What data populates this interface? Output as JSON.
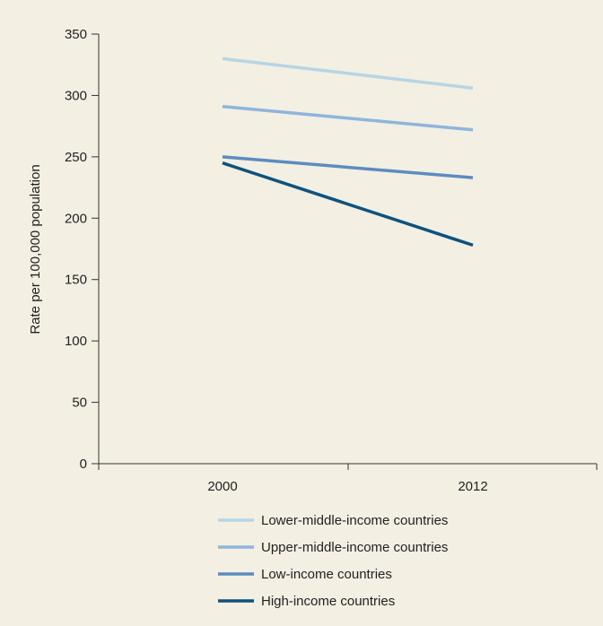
{
  "chart_data": {
    "type": "line",
    "title": "",
    "xlabel": "",
    "ylabel": "Rate per 100,000 population",
    "categories": [
      "2000",
      "2012"
    ],
    "ylim": [
      0,
      350
    ],
    "yticks": [
      0,
      50,
      100,
      150,
      200,
      250,
      300,
      350
    ],
    "grid": false,
    "legend_position": "bottom",
    "series": [
      {
        "name": "Lower-middle-income countries",
        "values": [
          330,
          306
        ],
        "color": "#b6d5e6"
      },
      {
        "name": "Upper-middle-income countries",
        "values": [
          291,
          272
        ],
        "color": "#8fb5dc"
      },
      {
        "name": "Low-income countries",
        "values": [
          250,
          233
        ],
        "color": "#5b8cc0"
      },
      {
        "name": "High-income countries",
        "values": [
          245,
          178
        ],
        "color": "#0e5280"
      }
    ]
  }
}
